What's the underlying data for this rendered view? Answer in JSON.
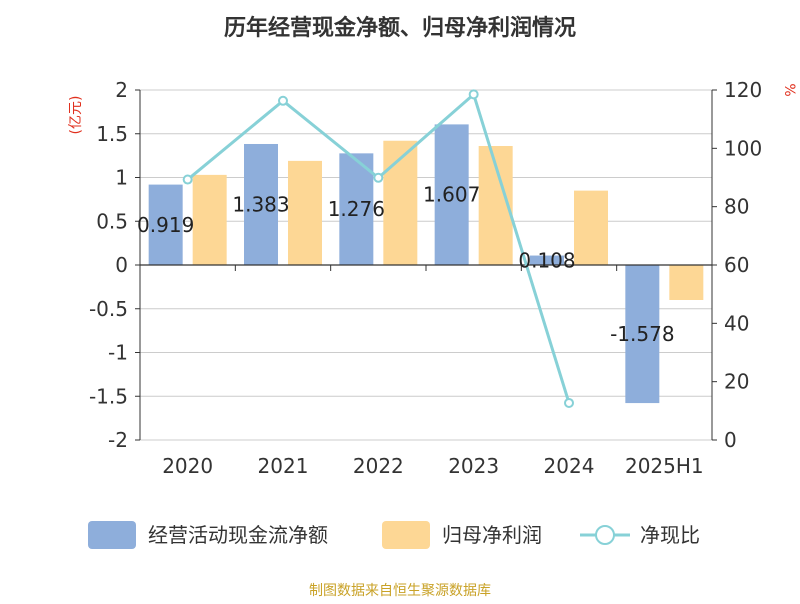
{
  "chart_data": {
    "type": "bar",
    "title": "历年经营现金净额、归母净利润情况",
    "y_left_label": "(亿元)",
    "y_right_label": "%",
    "categories": [
      "2020",
      "2021",
      "2022",
      "2023",
      "2024",
      "2025H1"
    ],
    "y_left_ticks": [
      "2",
      "1.5",
      "1",
      "0.5",
      "0",
      "-0.5",
      "-1",
      "-1.5",
      "-2"
    ],
    "y_right_ticks": [
      "120",
      "100",
      "80",
      "60",
      "40",
      "20",
      "0"
    ],
    "ylim_left": [
      -2,
      2
    ],
    "ylim_right": [
      0,
      120
    ],
    "grid": true,
    "legend_position": "bottom",
    "series": [
      {
        "name": "经营活动现金流净额",
        "kind": "bar",
        "color": "#8eaedb",
        "values": [
          0.919,
          1.383,
          1.276,
          1.607,
          0.108,
          -1.578
        ],
        "labels": [
          "0.919",
          "1.383",
          "1.276",
          "1.607",
          "0.108",
          "-1.578"
        ]
      },
      {
        "name": "归母净利润",
        "kind": "bar",
        "color": "#fdd795",
        "values": [
          1.03,
          1.19,
          1.42,
          1.36,
          0.85,
          -0.4
        ]
      },
      {
        "name": "净现比",
        "kind": "line",
        "axis": "right",
        "color": "#87d1d7",
        "values": [
          89.3,
          116.3,
          89.9,
          118.5,
          12.7,
          null
        ]
      }
    ]
  },
  "footer": {
    "source": "制图数据来自恒生聚源数据库"
  }
}
